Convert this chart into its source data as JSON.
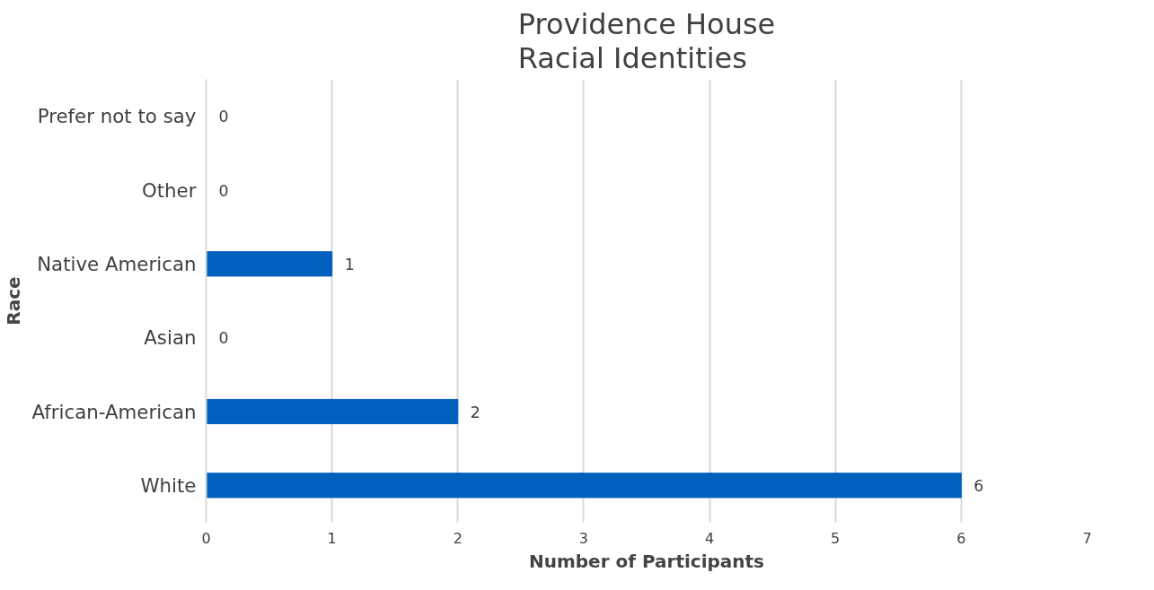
{
  "chart_data": {
    "type": "bar",
    "orientation": "horizontal",
    "title": "Providence House\nRacial Identities",
    "xlabel": "Number of Participants",
    "ylabel": "Race",
    "categories": [
      "Prefer not to say",
      "Other",
      "Native American",
      "Asian",
      "African-American",
      "White"
    ],
    "values": [
      0,
      0,
      1,
      0,
      2,
      6
    ],
    "color": "#0060bd",
    "data_labels": true,
    "xlim": [
      0,
      7
    ],
    "xticks": [
      0,
      1,
      2,
      3,
      4,
      5,
      6,
      7
    ],
    "grid": "x"
  }
}
